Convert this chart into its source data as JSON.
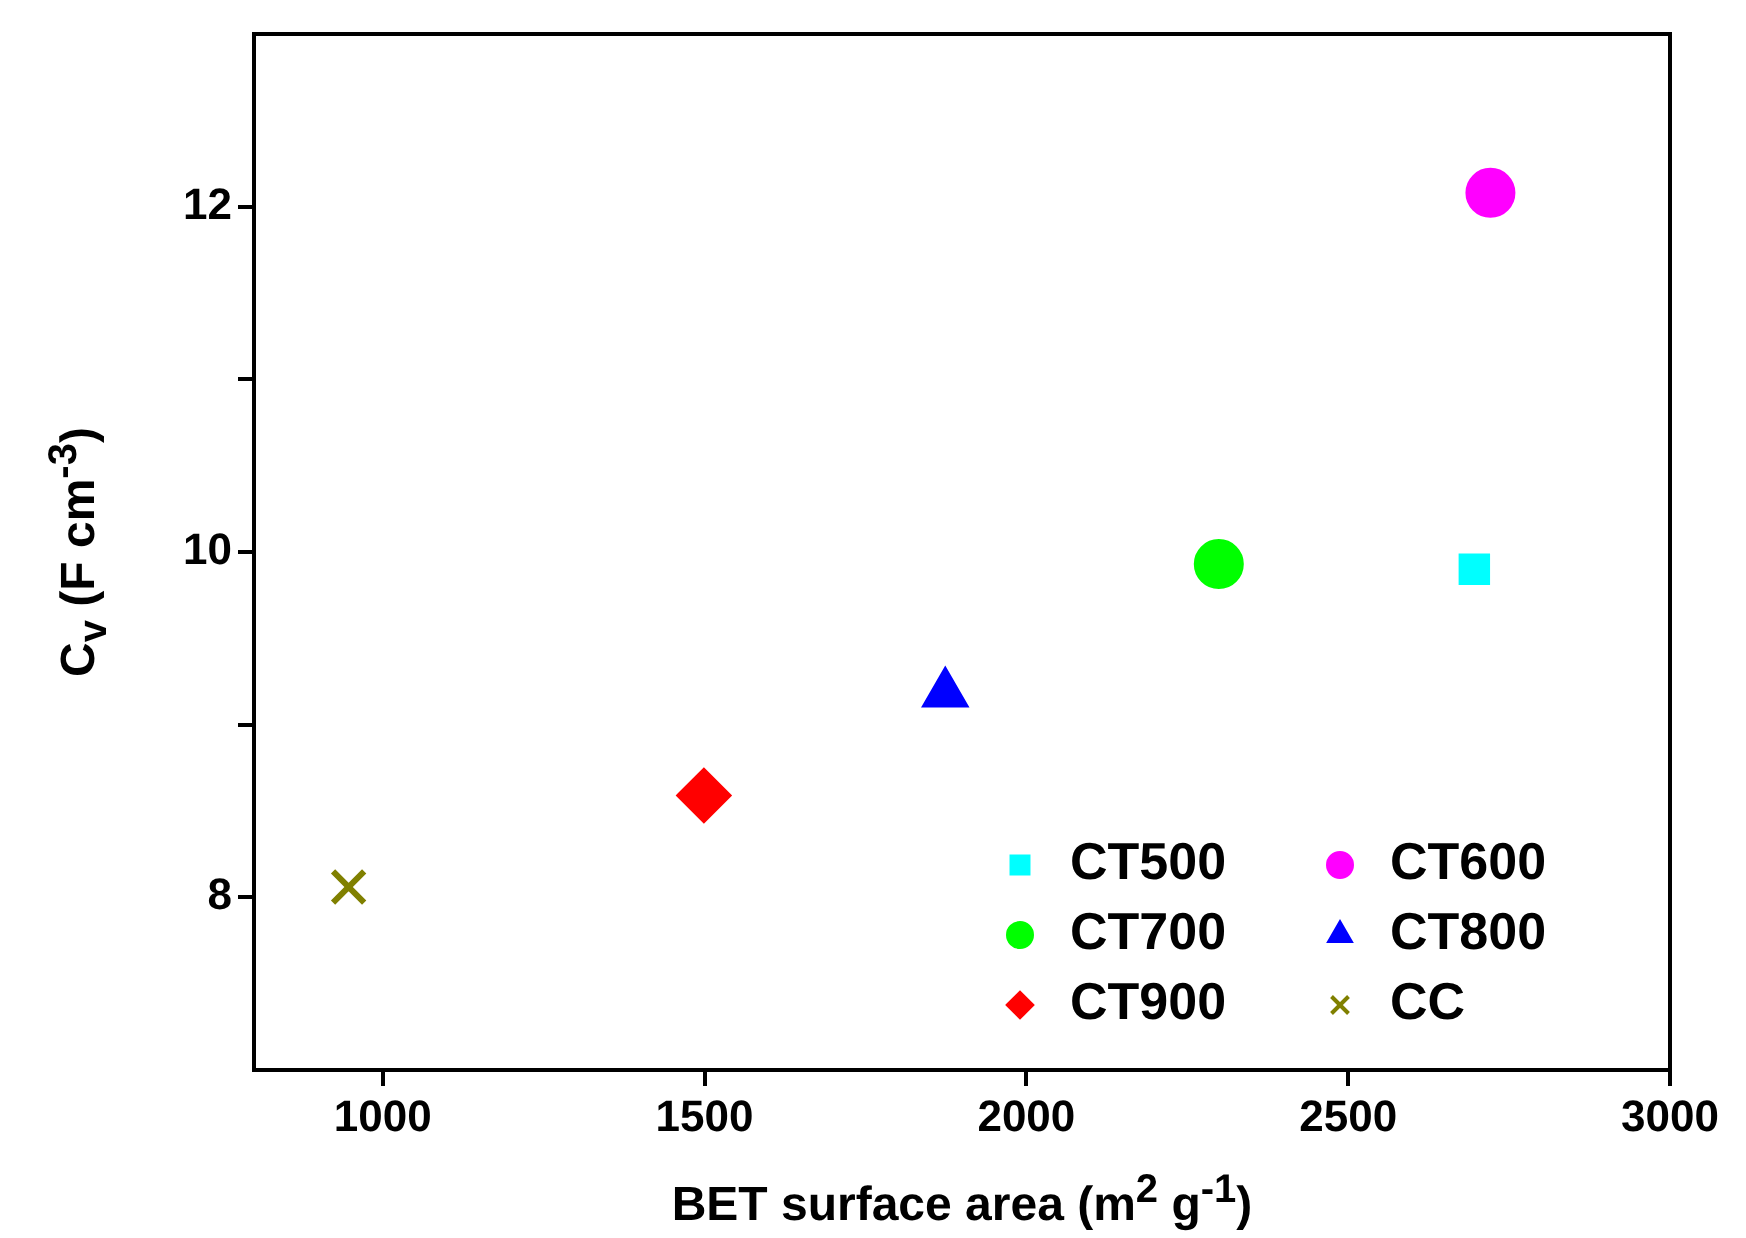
{
  "chart_data": {
    "type": "scatter",
    "xlabel": "BET surface area (m$^{2}$ g$^{-1}$)",
    "ylabel": "C$_{v}$ (F cm$^{-3}$)",
    "xlim": [
      800,
      3000
    ],
    "xticks": [
      1000,
      1500,
      2000,
      2500,
      3000
    ],
    "ylim": [
      7,
      13
    ],
    "yticks": [
      8,
      {
        "value": 9,
        "label": null
      },
      10,
      {
        "value": 11,
        "label": null
      },
      12
    ],
    "grid": false,
    "legend": "bottom right",
    "series": [
      {
        "name": "CT500",
        "color": "#00ffff",
        "marker": "square",
        "x": [
          2696
        ],
        "values": [
          9.9
        ]
      },
      {
        "name": "CT600",
        "color": "#ff00ff",
        "marker": "circle",
        "x": [
          2721
        ],
        "values": [
          12.08
        ]
      },
      {
        "name": "CT700",
        "color": "#00ff00",
        "marker": "circle",
        "x": [
          2299
        ],
        "values": [
          9.93
        ]
      },
      {
        "name": "CT800",
        "color": "#0000ff",
        "marker": "triangle",
        "x": [
          1874
        ],
        "values": [
          9.18
        ]
      },
      {
        "name": "CT900",
        "color": "#ff0000",
        "marker": "diamond",
        "x": [
          1499
        ],
        "values": [
          8.59
        ]
      },
      {
        "name": "CC",
        "color": "#808000",
        "marker": "cross",
        "x": [
          947
        ],
        "values": [
          8.06
        ]
      }
    ]
  }
}
